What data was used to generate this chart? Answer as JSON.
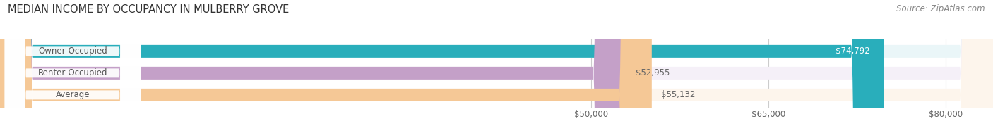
{
  "title": "MEDIAN INCOME BY OCCUPANCY IN MULBERRY GROVE",
  "source": "Source: ZipAtlas.com",
  "categories": [
    "Owner-Occupied",
    "Renter-Occupied",
    "Average"
  ],
  "values": [
    74792,
    52955,
    55132
  ],
  "bar_colors": [
    "#29AEBB",
    "#C4A0C8",
    "#F5C896"
  ],
  "bar_bg_colors": [
    "#EAF6F8",
    "#F5F0F8",
    "#FDF5EC"
  ],
  "value_labels": [
    "$74,792",
    "$52,955",
    "$55,132"
  ],
  "xlabel_ticks": [
    50000,
    65000,
    80000
  ],
  "xlabel_labels": [
    "$50,000",
    "$65,000",
    "$80,000"
  ],
  "xmin": 0,
  "xmax": 84000,
  "bar_height": 0.58,
  "label_color": "#666666",
  "title_color": "#333333",
  "source_color": "#888888",
  "title_fontsize": 10.5,
  "source_fontsize": 8.5,
  "tick_fontsize": 8.5,
  "bar_label_fontsize": 8.5,
  "cat_label_fontsize": 8.5,
  "cat_label_color": "#555555",
  "value_label_color_owner": "#FFFFFF",
  "value_label_color_others": "#555555"
}
